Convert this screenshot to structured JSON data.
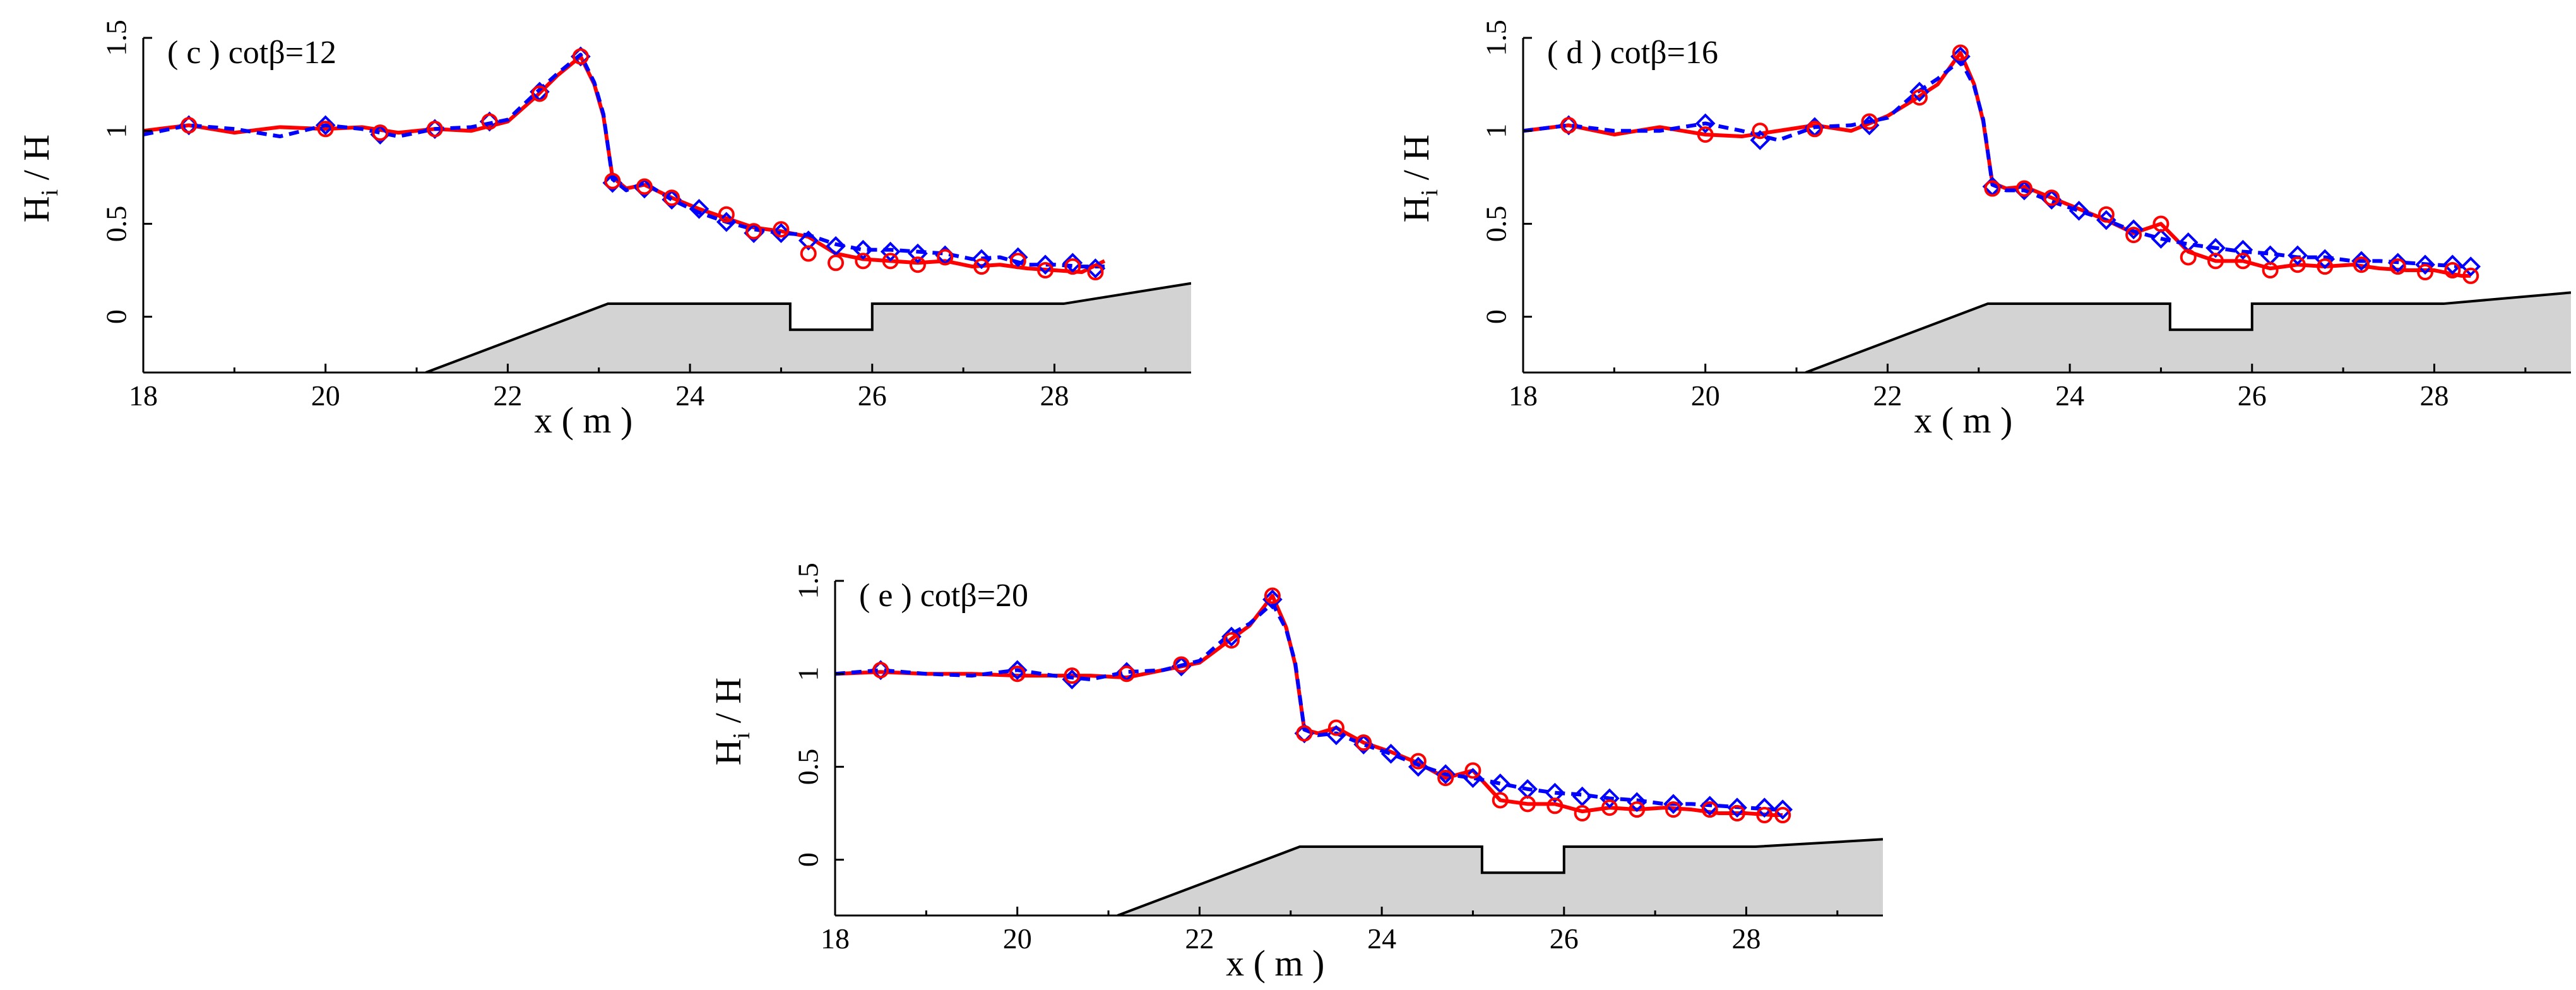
{
  "figure": {
    "background": "#ffffff",
    "colors": {
      "red_series": "#ff0000",
      "blue_series": "#0000ff",
      "seabed_fill": "#d3d3d3",
      "axis": "#000000"
    }
  },
  "chart_data": [
    {
      "type": "line",
      "panel_title": "( c ) cotβ=12",
      "xlabel": "x ( m )",
      "ylabel_main": "H",
      "ylabel_sub": "i",
      "ylabel_rest": " / H",
      "xlim": [
        18,
        29.5
      ],
      "ylim": [
        -0.3,
        1.5
      ],
      "x_ticks": [
        18,
        20,
        22,
        24,
        26,
        28
      ],
      "x_tick_labels": [
        "18",
        "20",
        "22",
        "24",
        "26",
        "28"
      ],
      "y_ticks": [
        0,
        0.5,
        1,
        1.5
      ],
      "y_tick_labels": [
        "0",
        "0.5",
        "1",
        "1.5"
      ],
      "series": [
        {
          "name": "red-solid-line",
          "style": "solid",
          "color": "#ff0000",
          "x": [
            18.0,
            18.5,
            19.0,
            19.5,
            20.0,
            20.4,
            20.8,
            21.2,
            21.6,
            22.0,
            22.3,
            22.55,
            22.8,
            22.95,
            23.05,
            23.15,
            23.3,
            23.5,
            23.8,
            24.1,
            24.4,
            24.7,
            25.0,
            25.3,
            25.6,
            25.9,
            26.2,
            26.5,
            26.8,
            27.1,
            27.4,
            27.7,
            28.0,
            28.3,
            28.55
          ],
          "y": [
            1.0,
            1.03,
            0.99,
            1.02,
            1.01,
            1.02,
            0.99,
            1.01,
            1.0,
            1.05,
            1.18,
            1.3,
            1.4,
            1.25,
            1.08,
            0.75,
            0.69,
            0.71,
            0.64,
            0.58,
            0.53,
            0.48,
            0.46,
            0.43,
            0.34,
            0.31,
            0.3,
            0.29,
            0.3,
            0.27,
            0.28,
            0.26,
            0.25,
            0.24,
            0.3
          ]
        },
        {
          "name": "blue-dashed-line",
          "style": "dashed",
          "color": "#0000ff",
          "x": [
            18.0,
            18.5,
            19.0,
            19.5,
            20.0,
            20.4,
            20.8,
            21.2,
            21.6,
            22.0,
            22.3,
            22.55,
            22.8,
            22.95,
            23.05,
            23.15,
            23.3,
            23.5,
            23.8,
            24.1,
            24.4,
            24.7,
            25.0,
            25.3,
            25.6,
            25.9,
            26.2,
            26.5,
            26.8,
            27.1,
            27.4,
            27.7,
            28.0,
            28.3,
            28.55
          ],
          "y": [
            0.98,
            1.03,
            1.01,
            0.97,
            1.03,
            1.01,
            0.97,
            1.01,
            1.02,
            1.06,
            1.2,
            1.31,
            1.41,
            1.26,
            1.09,
            0.74,
            0.68,
            0.72,
            0.63,
            0.56,
            0.51,
            0.47,
            0.45,
            0.44,
            0.39,
            0.36,
            0.36,
            0.35,
            0.34,
            0.31,
            0.32,
            0.28,
            0.28,
            0.27,
            0.27
          ]
        }
      ],
      "red_markers": {
        "symbol": "circle",
        "x": [
          18.5,
          20.0,
          20.6,
          21.2,
          21.8,
          22.35,
          22.8,
          23.15,
          23.5,
          23.8,
          24.4,
          24.7,
          25.0,
          25.3,
          25.6,
          25.9,
          26.2,
          26.5,
          26.8,
          27.2,
          27.6,
          27.9,
          28.2,
          28.45
        ],
        "y": [
          1.03,
          1.01,
          0.99,
          1.01,
          1.05,
          1.2,
          1.4,
          0.73,
          0.7,
          0.64,
          0.55,
          0.46,
          0.47,
          0.34,
          0.29,
          0.3,
          0.3,
          0.28,
          0.32,
          0.27,
          0.3,
          0.25,
          0.27,
          0.24
        ]
      },
      "blue_markers": {
        "symbol": "diamond",
        "x": [
          18.5,
          20.0,
          20.6,
          21.2,
          21.8,
          22.35,
          22.8,
          23.15,
          23.5,
          23.8,
          24.1,
          24.4,
          24.7,
          25.0,
          25.3,
          25.6,
          25.9,
          26.2,
          26.5,
          26.8,
          27.2,
          27.6,
          27.9,
          28.2,
          28.45
        ],
        "y": [
          1.03,
          1.03,
          0.98,
          1.01,
          1.05,
          1.21,
          1.4,
          0.72,
          0.69,
          0.63,
          0.58,
          0.51,
          0.45,
          0.45,
          0.41,
          0.38,
          0.36,
          0.35,
          0.34,
          0.33,
          0.31,
          0.32,
          0.28,
          0.29,
          0.26
        ]
      },
      "seabed": {
        "x": [
          21.1,
          23.1,
          25.1,
          25.1,
          26.0,
          26.0,
          28.1,
          29.5
        ],
        "y": [
          -0.3,
          0.07,
          0.07,
          -0.07,
          -0.07,
          0.07,
          0.07,
          0.18
        ]
      }
    },
    {
      "type": "line",
      "panel_title": "( d ) cotβ=16",
      "xlabel": "x ( m )",
      "ylabel_main": "H",
      "ylabel_sub": "i",
      "ylabel_rest": " / H",
      "xlim": [
        18,
        29.5
      ],
      "ylim": [
        -0.3,
        1.5
      ],
      "x_ticks": [
        18,
        20,
        22,
        24,
        26,
        28
      ],
      "x_tick_labels": [
        "18",
        "20",
        "22",
        "24",
        "26",
        "28"
      ],
      "y_ticks": [
        0,
        0.5,
        1,
        1.5
      ],
      "y_tick_labels": [
        "0",
        "0.5",
        "1",
        "1.5"
      ],
      "series": [
        {
          "name": "red-solid-line",
          "style": "solid",
          "color": "#ff0000",
          "x": [
            18.0,
            18.5,
            19.0,
            19.5,
            20.0,
            20.4,
            20.8,
            21.2,
            21.6,
            22.0,
            22.3,
            22.55,
            22.8,
            22.95,
            23.05,
            23.15,
            23.3,
            23.5,
            23.8,
            24.1,
            24.4,
            24.7,
            25.0,
            25.3,
            25.6,
            25.9,
            26.2,
            26.5,
            26.8,
            27.1,
            27.4,
            27.7,
            28.0,
            28.3,
            28.4
          ],
          "y": [
            1.0,
            1.03,
            0.98,
            1.02,
            0.98,
            0.97,
            1.0,
            1.03,
            1.0,
            1.08,
            1.17,
            1.25,
            1.42,
            1.25,
            1.05,
            0.72,
            0.69,
            0.7,
            0.64,
            0.58,
            0.52,
            0.45,
            0.5,
            0.35,
            0.3,
            0.3,
            0.26,
            0.28,
            0.27,
            0.28,
            0.26,
            0.25,
            0.25,
            0.22,
            0.22
          ]
        },
        {
          "name": "blue-dashed-line",
          "style": "dashed",
          "color": "#0000ff",
          "x": [
            18.0,
            18.5,
            19.0,
            19.5,
            20.0,
            20.4,
            20.8,
            21.2,
            21.6,
            22.0,
            22.3,
            22.55,
            22.8,
            22.95,
            23.05,
            23.15,
            23.3,
            23.5,
            23.8,
            24.1,
            24.4,
            24.7,
            25.0,
            25.3,
            25.6,
            25.9,
            26.2,
            26.5,
            26.8,
            27.1,
            27.4,
            27.7,
            28.0,
            28.3,
            28.4
          ],
          "y": [
            1.0,
            1.03,
            1.0,
            1.0,
            1.04,
            1.0,
            0.95,
            1.02,
            1.03,
            1.07,
            1.2,
            1.28,
            1.38,
            1.24,
            1.06,
            0.71,
            0.68,
            0.68,
            0.62,
            0.57,
            0.52,
            0.46,
            0.42,
            0.39,
            0.37,
            0.35,
            0.34,
            0.32,
            0.32,
            0.3,
            0.3,
            0.29,
            0.28,
            0.27,
            0.27
          ]
        }
      ],
      "red_markers": {
        "symbol": "circle",
        "x": [
          18.5,
          20.0,
          20.6,
          21.2,
          21.8,
          22.35,
          22.8,
          23.15,
          23.5,
          23.8,
          24.4,
          24.7,
          25.0,
          25.3,
          25.6,
          25.9,
          26.2,
          26.5,
          26.8,
          27.2,
          27.6,
          27.9,
          28.2,
          28.4
        ],
        "y": [
          1.03,
          0.98,
          1.0,
          1.01,
          1.05,
          1.18,
          1.42,
          0.69,
          0.69,
          0.64,
          0.55,
          0.44,
          0.5,
          0.32,
          0.3,
          0.3,
          0.25,
          0.28,
          0.27,
          0.28,
          0.27,
          0.24,
          0.25,
          0.22
        ]
      },
      "blue_markers": {
        "symbol": "diamond",
        "x": [
          18.5,
          20.0,
          20.6,
          21.2,
          21.8,
          22.35,
          22.8,
          23.15,
          23.5,
          23.8,
          24.1,
          24.4,
          24.7,
          25.0,
          25.3,
          25.6,
          25.9,
          26.2,
          26.5,
          26.8,
          27.2,
          27.6,
          27.9,
          28.2,
          28.4
        ],
        "y": [
          1.03,
          1.04,
          0.95,
          1.02,
          1.03,
          1.21,
          1.4,
          0.7,
          0.68,
          0.63,
          0.57,
          0.52,
          0.47,
          0.42,
          0.4,
          0.37,
          0.36,
          0.33,
          0.33,
          0.31,
          0.3,
          0.29,
          0.28,
          0.28,
          0.27
        ]
      },
      "seabed": {
        "x": [
          21.1,
          23.1,
          25.1,
          25.1,
          26.0,
          26.0,
          28.1,
          29.5
        ],
        "y": [
          -0.3,
          0.07,
          0.07,
          -0.07,
          -0.07,
          0.07,
          0.07,
          0.13
        ]
      }
    },
    {
      "type": "line",
      "panel_title": "( e ) cotβ=20",
      "xlabel": "x ( m )",
      "ylabel_main": "H",
      "ylabel_sub": "i",
      "ylabel_rest": " / H",
      "xlim": [
        18,
        29.5
      ],
      "ylim": [
        -0.3,
        1.5
      ],
      "x_ticks": [
        18,
        20,
        22,
        24,
        26,
        28
      ],
      "x_tick_labels": [
        "18",
        "20",
        "22",
        "24",
        "26",
        "28"
      ],
      "y_ticks": [
        0,
        0.5,
        1,
        1.5
      ],
      "y_tick_labels": [
        "0",
        "0.5",
        "1",
        "1.5"
      ],
      "series": [
        {
          "name": "red-solid-line",
          "style": "solid",
          "color": "#ff0000",
          "x": [
            18.0,
            18.5,
            19.0,
            19.5,
            20.0,
            20.4,
            20.8,
            21.2,
            21.6,
            22.0,
            22.3,
            22.55,
            22.8,
            22.95,
            23.05,
            23.15,
            23.3,
            23.5,
            23.8,
            24.1,
            24.4,
            24.7,
            25.0,
            25.3,
            25.6,
            25.9,
            26.2,
            26.5,
            26.8,
            27.1,
            27.4,
            27.7,
            28.0,
            28.3,
            28.4
          ],
          "y": [
            1.0,
            1.01,
            1.0,
            1.0,
            0.99,
            0.99,
            0.99,
            0.98,
            1.02,
            1.06,
            1.17,
            1.26,
            1.42,
            1.25,
            1.05,
            0.7,
            0.68,
            0.71,
            0.63,
            0.58,
            0.52,
            0.44,
            0.48,
            0.32,
            0.3,
            0.3,
            0.26,
            0.28,
            0.27,
            0.28,
            0.27,
            0.25,
            0.25,
            0.24,
            0.24
          ]
        },
        {
          "name": "blue-dashed-line",
          "style": "dashed",
          "color": "#0000ff",
          "x": [
            18.0,
            18.5,
            19.0,
            19.5,
            20.0,
            20.4,
            20.8,
            21.2,
            21.6,
            22.0,
            22.3,
            22.55,
            22.8,
            22.95,
            23.05,
            23.15,
            23.3,
            23.5,
            23.8,
            24.1,
            24.4,
            24.7,
            25.0,
            25.3,
            25.6,
            25.9,
            26.2,
            26.5,
            26.8,
            27.1,
            27.4,
            27.7,
            28.0,
            28.3,
            28.4
          ],
          "y": [
            1.0,
            1.02,
            1.0,
            0.99,
            1.02,
            0.99,
            0.97,
            1.01,
            1.02,
            1.07,
            1.2,
            1.27,
            1.38,
            1.24,
            1.06,
            0.7,
            0.67,
            0.68,
            0.62,
            0.57,
            0.51,
            0.46,
            0.44,
            0.41,
            0.38,
            0.36,
            0.35,
            0.33,
            0.32,
            0.3,
            0.3,
            0.29,
            0.28,
            0.27,
            0.27
          ]
        }
      ],
      "red_markers": {
        "symbol": "circle",
        "x": [
          18.5,
          20.0,
          20.6,
          21.2,
          21.8,
          22.35,
          22.8,
          23.15,
          23.5,
          23.8,
          24.4,
          24.7,
          25.0,
          25.3,
          25.6,
          25.9,
          26.2,
          26.5,
          26.8,
          27.2,
          27.6,
          27.9,
          28.2,
          28.4
        ],
        "y": [
          1.02,
          1.0,
          0.99,
          1.0,
          1.05,
          1.18,
          1.42,
          0.68,
          0.71,
          0.63,
          0.53,
          0.44,
          0.48,
          0.32,
          0.3,
          0.29,
          0.25,
          0.28,
          0.27,
          0.27,
          0.27,
          0.25,
          0.24,
          0.24
        ]
      },
      "blue_markers": {
        "symbol": "diamond",
        "x": [
          18.5,
          20.0,
          20.6,
          21.2,
          21.8,
          22.35,
          22.8,
          23.15,
          23.5,
          23.8,
          24.1,
          24.4,
          24.7,
          25.0,
          25.3,
          25.6,
          25.9,
          26.2,
          26.5,
          26.8,
          27.2,
          27.6,
          27.9,
          28.2,
          28.4
        ],
        "y": [
          1.02,
          1.02,
          0.97,
          1.01,
          1.04,
          1.2,
          1.4,
          0.68,
          0.67,
          0.62,
          0.57,
          0.5,
          0.46,
          0.44,
          0.41,
          0.38,
          0.36,
          0.34,
          0.33,
          0.31,
          0.3,
          0.29,
          0.28,
          0.28,
          0.27
        ]
      },
      "seabed": {
        "x": [
          21.1,
          23.1,
          25.1,
          25.1,
          26.0,
          26.0,
          28.1,
          29.5
        ],
        "y": [
          -0.3,
          0.07,
          0.07,
          -0.07,
          -0.07,
          0.07,
          0.07,
          0.11
        ]
      }
    }
  ]
}
